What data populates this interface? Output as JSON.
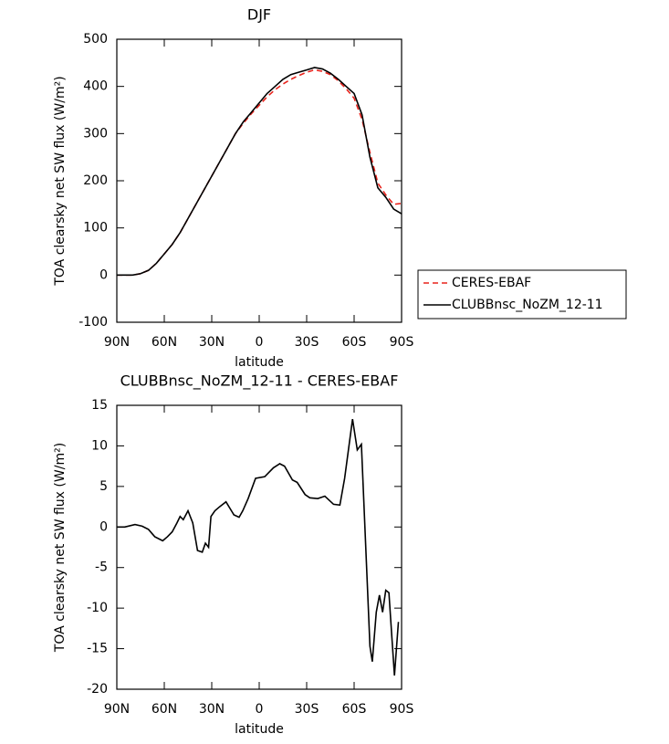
{
  "chart_data": [
    {
      "type": "line",
      "title": "DJF",
      "xlabel": "latitude",
      "ylabel": "TOA clearsky net SW flux (W/m²)",
      "x": [
        90,
        85,
        80,
        75,
        70,
        65,
        60,
        55,
        50,
        45,
        40,
        35,
        30,
        25,
        20,
        15,
        10,
        5,
        0,
        -5,
        -10,
        -15,
        -20,
        -25,
        -30,
        -35,
        -40,
        -45,
        -50,
        -55,
        -60,
        -65,
        -70,
        -75,
        -80,
        -85,
        -90
      ],
      "series": [
        {
          "name": "CERES-EBAF",
          "color": "#e8231c",
          "style": "dashed",
          "values": [
            0,
            0,
            0,
            3,
            10,
            25,
            45,
            65,
            90,
            120,
            150,
            180,
            210,
            240,
            270,
            300,
            322,
            342,
            360,
            378,
            393,
            405,
            415,
            423,
            430,
            435,
            432,
            425,
            412,
            395,
            375,
            330,
            260,
            195,
            170,
            150,
            152
          ]
        },
        {
          "name": "CLUBBnsc_NoZM_12-11",
          "color": "#000000",
          "style": "solid",
          "values": [
            0,
            0,
            0,
            3,
            10,
            25,
            45,
            65,
            90,
            120,
            150,
            180,
            210,
            240,
            270,
            300,
            325,
            345,
            365,
            385,
            400,
            415,
            425,
            430,
            435,
            440,
            437,
            428,
            415,
            400,
            385,
            340,
            250,
            185,
            165,
            140,
            130
          ]
        }
      ],
      "xlim": [
        90,
        -90
      ],
      "xticks": [
        {
          "value": 90,
          "label": "90N"
        },
        {
          "value": 60,
          "label": "60N"
        },
        {
          "value": 30,
          "label": "30N"
        },
        0,
        {
          "value": -30,
          "label": "30S"
        },
        {
          "value": -60,
          "label": "60S"
        },
        {
          "value": -90,
          "label": "90S"
        }
      ],
      "ylim": [
        -100,
        500
      ],
      "yticks": [
        -100,
        0,
        100,
        200,
        300,
        400,
        500
      ],
      "legend": "right"
    },
    {
      "type": "line",
      "title": "CLUBBnsc_NoZM_12-11 - CERES-EBAF",
      "xlabel": "latitude",
      "ylabel": "TOA clearsky net SW flux (W/m²)",
      "x": [
        90,
        85,
        78.5,
        74,
        70,
        66,
        61,
        58,
        55,
        52,
        50,
        48,
        45,
        42,
        39,
        36,
        34,
        32,
        30.5,
        28,
        25,
        21,
        16,
        12.7,
        10.4,
        7,
        2.3,
        -3.5,
        -9,
        -13,
        -16,
        -21,
        -24,
        -29,
        -32,
        -37,
        -41.5,
        -47,
        -51,
        -54,
        -59,
        -62,
        -64.6,
        -70,
        -71.5,
        -74,
        -76,
        -78,
        -80,
        -82,
        -84,
        -85.5,
        -88
      ],
      "values": [
        0,
        0,
        0.3,
        0.1,
        -0.3,
        -1.2,
        -1.7,
        -1.2,
        -0.6,
        0.5,
        1.3,
        0.9,
        2.0,
        0.5,
        -2.9,
        -3.1,
        -2.0,
        -2.5,
        1.3,
        2.0,
        2.5,
        3.1,
        1.5,
        1.2,
        2.0,
        3.5,
        6.0,
        6.2,
        7.3,
        7.8,
        7.5,
        5.8,
        5.5,
        4.0,
        3.6,
        3.5,
        3.8,
        2.8,
        2.7,
        6.0,
        13.3,
        9.5,
        10.2,
        -14.7,
        -16.6,
        -10.5,
        -8.4,
        -10.5,
        -7.8,
        -8.1,
        -14.0,
        -18.3,
        -11.7
      ],
      "color": "#000000",
      "xlim": [
        90,
        -90
      ],
      "xticks": [
        {
          "value": 90,
          "label": "90N"
        },
        {
          "value": 60,
          "label": "60N"
        },
        {
          "value": 30,
          "label": "30N"
        },
        0,
        {
          "value": -30,
          "label": "30S"
        },
        {
          "value": -60,
          "label": "60S"
        },
        {
          "value": -90,
          "label": "90S"
        }
      ],
      "ylim": [
        -20,
        15
      ],
      "yticks": [
        -20,
        -15,
        -10,
        -5,
        0,
        5,
        10,
        15
      ]
    }
  ]
}
